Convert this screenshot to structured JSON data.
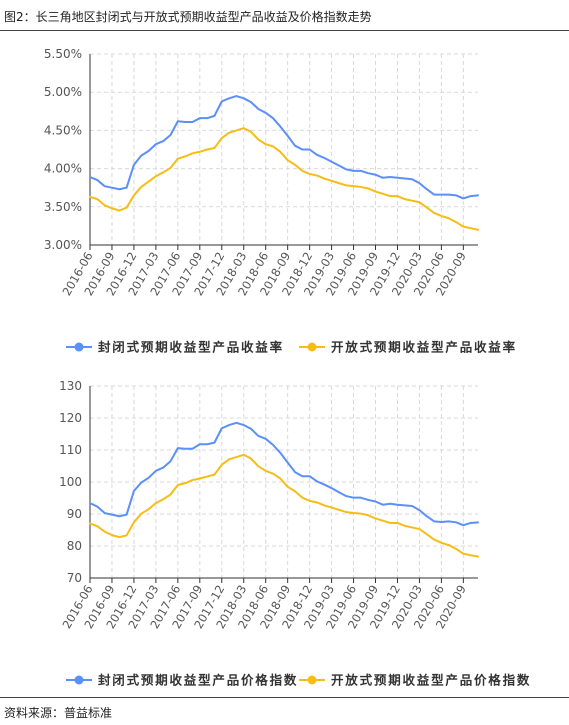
{
  "figure": {
    "title": "图2：长三角地区封闭式与开放式预期收益型产品收益及价格指数走势",
    "source": "资料来源：普益标准"
  },
  "colors": {
    "closed": "#5b8ff9",
    "open": "#f6bd16",
    "grid": "#d9d9d9",
    "axis": "#333333",
    "tick_text": "#555555"
  },
  "chart_data": [
    {
      "type": "line",
      "title": "",
      "xlabel": "",
      "ylabel": "",
      "ylim": [
        0.03,
        0.055
      ],
      "yticks": [
        "3.00%",
        "3.50%",
        "4.00%",
        "4.50%",
        "5.00%",
        "5.50%"
      ],
      "ytick_values": [
        0.03,
        0.035,
        0.04,
        0.045,
        0.05,
        0.055
      ],
      "x_tick_labels": [
        "2016-06",
        "2016-09",
        "2016-12",
        "2017-03",
        "2017-06",
        "2017-09",
        "2017-12",
        "2018-03",
        "2018-06",
        "2018-09",
        "2018-12",
        "2019-03",
        "2019-06",
        "2019-09",
        "2019-12",
        "2020-03",
        "2020-06",
        "2020-09"
      ],
      "x": [
        "2016-06",
        "2016-07",
        "2016-08",
        "2016-09",
        "2016-10",
        "2016-11",
        "2016-12",
        "2017-01",
        "2017-02",
        "2017-03",
        "2017-04",
        "2017-05",
        "2017-06",
        "2017-07",
        "2017-08",
        "2017-09",
        "2017-10",
        "2017-11",
        "2017-12",
        "2018-01",
        "2018-02",
        "2018-03",
        "2018-04",
        "2018-05",
        "2018-06",
        "2018-07",
        "2018-08",
        "2018-09",
        "2018-10",
        "2018-11",
        "2018-12",
        "2019-01",
        "2019-02",
        "2019-03",
        "2019-04",
        "2019-05",
        "2019-06",
        "2019-07",
        "2019-08",
        "2019-09",
        "2019-10",
        "2019-11",
        "2019-12",
        "2020-01",
        "2020-02",
        "2020-03",
        "2020-04",
        "2020-05",
        "2020-06",
        "2020-07",
        "2020-08",
        "2020-09",
        "2020-10",
        "2020-11"
      ],
      "grid": true,
      "legend_position": "bottom-center",
      "series": [
        {
          "name": "封闭式预期收益型产品收益率",
          "color": "#5b8ff9",
          "values": [
            0.0389,
            0.0385,
            0.0377,
            0.0375,
            0.0373,
            0.0375,
            0.0405,
            0.0417,
            0.0423,
            0.0432,
            0.0436,
            0.0444,
            0.0462,
            0.0461,
            0.0461,
            0.0466,
            0.0466,
            0.0469,
            0.0488,
            0.0492,
            0.0495,
            0.0492,
            0.0487,
            0.0478,
            0.0473,
            0.0466,
            0.0455,
            0.0443,
            0.043,
            0.0425,
            0.0425,
            0.0418,
            0.0414,
            0.0409,
            0.0404,
            0.0399,
            0.0397,
            0.0397,
            0.0394,
            0.0392,
            0.0388,
            0.0389,
            0.0388,
            0.0387,
            0.0386,
            0.0381,
            0.0373,
            0.0366,
            0.0366,
            0.0366,
            0.0365,
            0.0361,
            0.0364,
            0.0365
          ]
        },
        {
          "name": "开放式预期收益型产品收益率",
          "color": "#f6bd16",
          "values": [
            0.0363,
            0.036,
            0.0352,
            0.0348,
            0.0345,
            0.0349,
            0.0365,
            0.0376,
            0.0383,
            0.039,
            0.0395,
            0.0401,
            0.0413,
            0.0416,
            0.042,
            0.0422,
            0.0425,
            0.0427,
            0.044,
            0.0447,
            0.045,
            0.0453,
            0.0448,
            0.0438,
            0.0432,
            0.0429,
            0.0422,
            0.0411,
            0.0405,
            0.0397,
            0.0393,
            0.0391,
            0.0387,
            0.0384,
            0.0381,
            0.0378,
            0.0377,
            0.0376,
            0.0374,
            0.037,
            0.0367,
            0.0364,
            0.0364,
            0.036,
            0.0358,
            0.0356,
            0.0349,
            0.0342,
            0.0338,
            0.0335,
            0.033,
            0.0324,
            0.0322,
            0.032
          ]
        }
      ]
    },
    {
      "type": "line",
      "title": "",
      "xlabel": "",
      "ylabel": "",
      "ylim": [
        70,
        130
      ],
      "yticks": [
        "70",
        "80",
        "90",
        "100",
        "110",
        "120",
        "130"
      ],
      "ytick_values": [
        70,
        80,
        90,
        100,
        110,
        120,
        130
      ],
      "x_tick_labels": [
        "2016-06",
        "2016-09",
        "2016-12",
        "2017-03",
        "2017-06",
        "2017-09",
        "2017-12",
        "2018-03",
        "2018-06",
        "2018-09",
        "2018-12",
        "2019-03",
        "2019-06",
        "2019-09",
        "2019-12",
        "2020-03",
        "2020-06",
        "2020-09"
      ],
      "x": [
        "2016-06",
        "2016-07",
        "2016-08",
        "2016-09",
        "2016-10",
        "2016-11",
        "2016-12",
        "2017-01",
        "2017-02",
        "2017-03",
        "2017-04",
        "2017-05",
        "2017-06",
        "2017-07",
        "2017-08",
        "2017-09",
        "2017-10",
        "2017-11",
        "2017-12",
        "2018-01",
        "2018-02",
        "2018-03",
        "2018-04",
        "2018-05",
        "2018-06",
        "2018-07",
        "2018-08",
        "2018-09",
        "2018-10",
        "2018-11",
        "2018-12",
        "2019-01",
        "2019-02",
        "2019-03",
        "2019-04",
        "2019-05",
        "2019-06",
        "2019-07",
        "2019-08",
        "2019-09",
        "2019-10",
        "2019-11",
        "2019-12",
        "2020-01",
        "2020-02",
        "2020-03",
        "2020-04",
        "2020-05",
        "2020-06",
        "2020-07",
        "2020-08",
        "2020-09",
        "2020-10",
        "2020-11"
      ],
      "grid": true,
      "legend_position": "bottom-center",
      "series": [
        {
          "name": "封闭式预期收益型产品价格指数",
          "color": "#5b8ff9",
          "values": [
            93.4,
            92.3,
            90.3,
            89.8,
            89.3,
            89.8,
            97.2,
            99.8,
            101.3,
            103.5,
            104.5,
            106.5,
            110.6,
            110.4,
            110.4,
            111.8,
            111.8,
            112.3,
            116.8,
            117.8,
            118.5,
            117.8,
            116.6,
            114.4,
            113.5,
            111.6,
            109.1,
            106.1,
            103.1,
            101.8,
            101.8,
            100.2,
            99.2,
            98.1,
            96.8,
            95.6,
            95.1,
            95.1,
            94.4,
            93.9,
            92.9,
            93.2,
            92.9,
            92.7,
            92.5,
            91.2,
            89.3,
            87.7,
            87.5,
            87.7,
            87.4,
            86.5,
            87.2,
            87.4
          ]
        },
        {
          "name": "开放式预期收益型产品价格指数",
          "color": "#f6bd16",
          "values": [
            87.0,
            86.2,
            84.5,
            83.4,
            82.8,
            83.3,
            87.4,
            90.1,
            91.5,
            93.4,
            94.6,
            96.1,
            99.1,
            99.6,
            100.6,
            101.1,
            101.7,
            102.3,
            105.4,
            107.1,
            107.8,
            108.5,
            107.3,
            104.9,
            103.5,
            102.6,
            101.1,
            98.5,
            97.1,
            95.1,
            94.1,
            93.6,
            92.7,
            92.0,
            91.3,
            90.6,
            90.3,
            90.1,
            89.6,
            88.6,
            87.9,
            87.2,
            87.2,
            86.3,
            85.8,
            85.3,
            83.7,
            82.0,
            81.0,
            80.3,
            79.1,
            77.6,
            77.1,
            76.7
          ]
        }
      ]
    }
  ]
}
